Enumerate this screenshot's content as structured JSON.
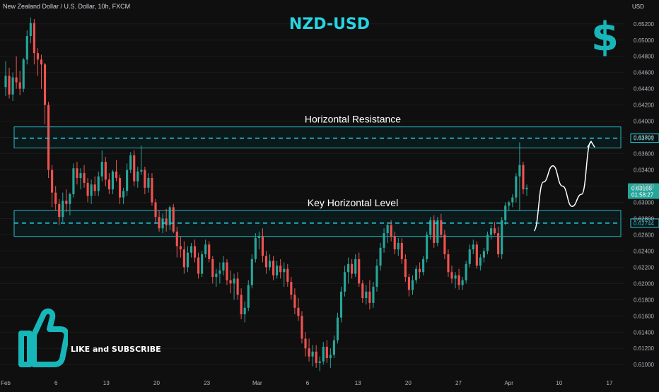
{
  "header": {
    "symbol_text": "New Zealand Dollar / U.S. Dollar, 10h, FXCM",
    "currency": "USD",
    "title": "NZD-USD",
    "dollar_icon": "dollar-sign-icon"
  },
  "promo": {
    "text": "LIKE and SUBSCRIBE",
    "icon": "thumbs-up-icon"
  },
  "colors": {
    "background": "#0f0f0f",
    "up": "#26a69a",
    "down": "#ef5350",
    "accent": "#26d4e3",
    "zone_border": "#2ab7c4",
    "zone_fill": "#0b2326",
    "price_tag_green": "#26a69a",
    "forecast": "#ffffff"
  },
  "chart_data": {
    "type": "candlestick",
    "title": "NZD-USD",
    "ylim": [
      0.6088,
      0.6532
    ],
    "y_ticks": [
      "0.65200",
      "0.65000",
      "0.64800",
      "0.64600",
      "0.64400",
      "0.64200",
      "0.64000",
      "0.63800",
      "0.63600",
      "0.63400",
      "0.63200",
      "0.63000",
      "0.62800",
      "0.62600",
      "0.62400",
      "0.62200",
      "0.62000",
      "0.61800",
      "0.61600",
      "0.61400",
      "0.61200",
      "0.61000"
    ],
    "x_ticks": [
      "Feb",
      "6",
      "13",
      "20",
      "23",
      "Mar",
      "6",
      "13",
      "20",
      "27",
      "Apr",
      "10",
      "17"
    ],
    "series": [
      {
        "candles": [
          [
            0.6442,
            0.6474,
            0.6431,
            0.6456
          ],
          [
            0.6456,
            0.6466,
            0.6428,
            0.6433
          ],
          [
            0.6433,
            0.646,
            0.6425,
            0.6454
          ],
          [
            0.6454,
            0.648,
            0.644,
            0.6448
          ],
          [
            0.6448,
            0.6462,
            0.6432,
            0.644
          ],
          [
            0.644,
            0.6478,
            0.6436,
            0.6476
          ],
          [
            0.6476,
            0.6512,
            0.647,
            0.6505
          ],
          [
            0.6505,
            0.6528,
            0.6496,
            0.6521
          ],
          [
            0.6521,
            0.6526,
            0.647,
            0.6484
          ],
          [
            0.6484,
            0.649,
            0.6456,
            0.6476
          ],
          [
            0.6476,
            0.6482,
            0.644,
            0.647
          ],
          [
            0.647,
            0.6472,
            0.6396,
            0.642
          ],
          [
            0.642,
            0.6424,
            0.633,
            0.634
          ],
          [
            0.634,
            0.6346,
            0.6294,
            0.6312
          ],
          [
            0.6312,
            0.632,
            0.629,
            0.6298
          ],
          [
            0.6298,
            0.6304,
            0.6272,
            0.6282
          ],
          [
            0.6282,
            0.6312,
            0.6276,
            0.6302
          ],
          [
            0.6302,
            0.6316,
            0.6288,
            0.6298
          ],
          [
            0.6298,
            0.6312,
            0.6284,
            0.631
          ],
          [
            0.631,
            0.6348,
            0.6306,
            0.6342
          ],
          [
            0.6342,
            0.635,
            0.6322,
            0.633
          ],
          [
            0.633,
            0.6342,
            0.6316,
            0.6336
          ],
          [
            0.6336,
            0.6346,
            0.6318,
            0.6324
          ],
          [
            0.6324,
            0.633,
            0.63,
            0.6308
          ],
          [
            0.6308,
            0.6328,
            0.6298,
            0.6322
          ],
          [
            0.6322,
            0.6332,
            0.6308,
            0.6314
          ],
          [
            0.6314,
            0.6338,
            0.6308,
            0.6332
          ],
          [
            0.6332,
            0.6364,
            0.6326,
            0.635
          ],
          [
            0.635,
            0.6356,
            0.632,
            0.6328
          ],
          [
            0.6328,
            0.6336,
            0.631,
            0.6316
          ],
          [
            0.6316,
            0.634,
            0.631,
            0.6338
          ],
          [
            0.6338,
            0.6352,
            0.6326,
            0.633
          ],
          [
            0.633,
            0.6334,
            0.6298,
            0.6306
          ],
          [
            0.6306,
            0.6318,
            0.6298,
            0.6314
          ],
          [
            0.6314,
            0.6348,
            0.6308,
            0.634
          ],
          [
            0.634,
            0.6362,
            0.6336,
            0.6358
          ],
          [
            0.6358,
            0.6364,
            0.632,
            0.6326
          ],
          [
            0.6326,
            0.6344,
            0.6318,
            0.6338
          ],
          [
            0.6338,
            0.637,
            0.6334,
            0.634
          ],
          [
            0.634,
            0.6344,
            0.631,
            0.6318
          ],
          [
            0.6318,
            0.6336,
            0.6312,
            0.633
          ],
          [
            0.633,
            0.6336,
            0.6296,
            0.63
          ],
          [
            0.63,
            0.6304,
            0.6274,
            0.6282
          ],
          [
            0.6282,
            0.629,
            0.6264,
            0.6268
          ],
          [
            0.6268,
            0.6286,
            0.6262,
            0.628
          ],
          [
            0.628,
            0.6292,
            0.6264,
            0.6272
          ],
          [
            0.6272,
            0.6296,
            0.6266,
            0.6294
          ],
          [
            0.6294,
            0.6298,
            0.6262,
            0.6264
          ],
          [
            0.6264,
            0.627,
            0.6232,
            0.6246
          ],
          [
            0.6246,
            0.6258,
            0.6232,
            0.6242
          ],
          [
            0.6242,
            0.6252,
            0.6212,
            0.622
          ],
          [
            0.622,
            0.6246,
            0.6214,
            0.6238
          ],
          [
            0.6238,
            0.625,
            0.6232,
            0.6246
          ],
          [
            0.6246,
            0.6254,
            0.6226,
            0.6232
          ],
          [
            0.6232,
            0.6238,
            0.6206,
            0.6212
          ],
          [
            0.6212,
            0.624,
            0.6208,
            0.6236
          ],
          [
            0.6236,
            0.6254,
            0.6232,
            0.6248
          ],
          [
            0.6248,
            0.6252,
            0.6226,
            0.623
          ],
          [
            0.623,
            0.6234,
            0.62,
            0.6208
          ],
          [
            0.6208,
            0.6218,
            0.6196,
            0.6212
          ],
          [
            0.6212,
            0.6226,
            0.62,
            0.6216
          ],
          [
            0.6216,
            0.6234,
            0.621,
            0.6226
          ],
          [
            0.6226,
            0.623,
            0.6198,
            0.6204
          ],
          [
            0.6204,
            0.6216,
            0.6188,
            0.62
          ],
          [
            0.62,
            0.6212,
            0.618,
            0.6206
          ],
          [
            0.6206,
            0.6214,
            0.618,
            0.6186
          ],
          [
            0.6186,
            0.6194,
            0.6156,
            0.6162
          ],
          [
            0.6162,
            0.6178,
            0.6152,
            0.617
          ],
          [
            0.617,
            0.6204,
            0.6166,
            0.6198
          ],
          [
            0.6198,
            0.6236,
            0.6194,
            0.623
          ],
          [
            0.623,
            0.6262,
            0.6226,
            0.6256
          ],
          [
            0.6256,
            0.6264,
            0.6242,
            0.6258
          ],
          [
            0.6258,
            0.6268,
            0.6226,
            0.6234
          ],
          [
            0.6234,
            0.624,
            0.6212,
            0.622
          ],
          [
            0.622,
            0.6236,
            0.6216,
            0.6228
          ],
          [
            0.6228,
            0.6234,
            0.6204,
            0.621
          ],
          [
            0.621,
            0.6228,
            0.6206,
            0.6222
          ],
          [
            0.6222,
            0.623,
            0.6206,
            0.6214
          ],
          [
            0.6214,
            0.6226,
            0.6196,
            0.6218
          ],
          [
            0.6218,
            0.6224,
            0.6196,
            0.6202
          ],
          [
            0.6202,
            0.6208,
            0.618,
            0.6186
          ],
          [
            0.6186,
            0.6194,
            0.6162,
            0.617
          ],
          [
            0.617,
            0.6182,
            0.6154,
            0.616
          ],
          [
            0.616,
            0.6166,
            0.6126,
            0.6132
          ],
          [
            0.6132,
            0.614,
            0.611,
            0.612
          ],
          [
            0.612,
            0.6132,
            0.6104,
            0.611
          ],
          [
            0.611,
            0.6124,
            0.6098,
            0.6116
          ],
          [
            0.6116,
            0.6124,
            0.6096,
            0.6102
          ],
          [
            0.6102,
            0.611,
            0.6092,
            0.6104
          ],
          [
            0.6104,
            0.6128,
            0.61,
            0.6122
          ],
          [
            0.6122,
            0.613,
            0.6102,
            0.6108
          ],
          [
            0.6108,
            0.612,
            0.6096,
            0.6112
          ],
          [
            0.6112,
            0.6136,
            0.6108,
            0.613
          ],
          [
            0.613,
            0.6164,
            0.6126,
            0.6158
          ],
          [
            0.6158,
            0.6196,
            0.6152,
            0.619
          ],
          [
            0.619,
            0.6222,
            0.6184,
            0.6214
          ],
          [
            0.6214,
            0.6232,
            0.62,
            0.6224
          ],
          [
            0.6224,
            0.623,
            0.6206,
            0.6212
          ],
          [
            0.6212,
            0.6236,
            0.6208,
            0.623
          ],
          [
            0.623,
            0.6238,
            0.6196,
            0.62
          ],
          [
            0.62,
            0.6204,
            0.6176,
            0.6182
          ],
          [
            0.6182,
            0.6198,
            0.6174,
            0.619
          ],
          [
            0.619,
            0.6204,
            0.6168,
            0.6176
          ],
          [
            0.6176,
            0.6202,
            0.617,
            0.6196
          ],
          [
            0.6196,
            0.623,
            0.619,
            0.6222
          ],
          [
            0.6222,
            0.625,
            0.6216,
            0.6244
          ],
          [
            0.6244,
            0.6268,
            0.6238,
            0.6262
          ],
          [
            0.6262,
            0.6276,
            0.625,
            0.6272
          ],
          [
            0.6272,
            0.6278,
            0.6252,
            0.6258
          ],
          [
            0.6258,
            0.6264,
            0.6236,
            0.6242
          ],
          [
            0.6242,
            0.6256,
            0.6234,
            0.625
          ],
          [
            0.625,
            0.6256,
            0.6224,
            0.623
          ],
          [
            0.623,
            0.6236,
            0.6202,
            0.6208
          ],
          [
            0.6208,
            0.6212,
            0.6184,
            0.6192
          ],
          [
            0.6192,
            0.621,
            0.6186,
            0.6204
          ],
          [
            0.6204,
            0.6222,
            0.62,
            0.6218
          ],
          [
            0.6218,
            0.6226,
            0.6206,
            0.6214
          ],
          [
            0.6214,
            0.6234,
            0.621,
            0.623
          ],
          [
            0.623,
            0.6264,
            0.6226,
            0.626
          ],
          [
            0.626,
            0.6282,
            0.6254,
            0.6278
          ],
          [
            0.6278,
            0.6284,
            0.6244,
            0.625
          ],
          [
            0.625,
            0.6282,
            0.6246,
            0.6278
          ],
          [
            0.6278,
            0.6286,
            0.6256,
            0.626
          ],
          [
            0.626,
            0.6266,
            0.623,
            0.6236
          ],
          [
            0.6236,
            0.6242,
            0.6208,
            0.6214
          ],
          [
            0.6214,
            0.6222,
            0.62,
            0.6206
          ],
          [
            0.6206,
            0.6214,
            0.6194,
            0.621
          ],
          [
            0.621,
            0.6218,
            0.6192,
            0.6198
          ],
          [
            0.6198,
            0.6208,
            0.6192,
            0.6204
          ],
          [
            0.6204,
            0.6228,
            0.62,
            0.6224
          ],
          [
            0.6224,
            0.6248,
            0.622,
            0.6242
          ],
          [
            0.6242,
            0.6254,
            0.6236,
            0.6248
          ],
          [
            0.6248,
            0.6252,
            0.6218,
            0.6222
          ],
          [
            0.6222,
            0.6236,
            0.6216,
            0.6232
          ],
          [
            0.6232,
            0.6244,
            0.6226,
            0.624
          ],
          [
            0.624,
            0.6264,
            0.6236,
            0.626
          ],
          [
            0.626,
            0.6272,
            0.6254,
            0.6268
          ],
          [
            0.6268,
            0.6276,
            0.626,
            0.6262
          ],
          [
            0.6262,
            0.627,
            0.6232,
            0.6236
          ],
          [
            0.6236,
            0.6282,
            0.623,
            0.6278
          ],
          [
            0.6278,
            0.63,
            0.6272,
            0.6296
          ],
          [
            0.6296,
            0.6302,
            0.629,
            0.63
          ],
          [
            0.63,
            0.631,
            0.6294,
            0.6306
          ],
          [
            0.6306,
            0.6336,
            0.63,
            0.6332
          ],
          [
            0.6332,
            0.6374,
            0.629,
            0.6346
          ],
          [
            0.6346,
            0.635,
            0.631,
            0.6316
          ],
          [
            0.6316,
            0.6322,
            0.6308,
            0.6318
          ]
        ]
      }
    ],
    "current_price": "0.63165",
    "countdown": "01:58:27",
    "annotations": [
      {
        "label": "Horizontal Resistance",
        "level": 0.63791,
        "level_text": "0.63791",
        "zone": [
          0.6367,
          0.6393
        ]
      },
      {
        "label": "Key Horizontal Level",
        "level": 0.62744,
        "level_text": "0.62744",
        "zone": [
          0.6258,
          0.629
        ]
      }
    ],
    "forecast_path": [
      [
        0.6265,
        0.6325,
        0.6345,
        0.632,
        0.6295,
        0.631,
        0.6375
      ]
    ]
  }
}
